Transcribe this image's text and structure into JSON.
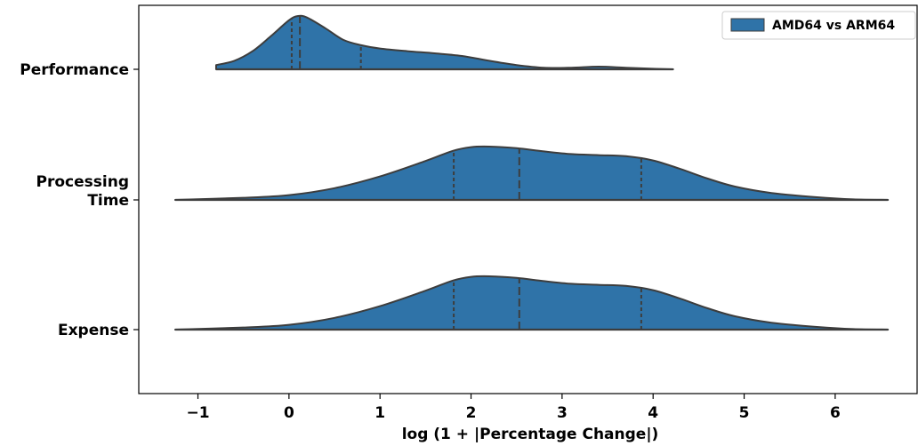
{
  "chart_data": {
    "type": "violin",
    "orientation": "horizontal",
    "split": "half (upper side only)",
    "inner": "quartile",
    "xlabel": "log (1 + |Percentage Change|)",
    "xlim": [
      -1.65,
      6.9
    ],
    "xticks": [
      -1,
      0,
      1,
      2,
      3,
      4,
      5,
      6
    ],
    "xtick_labels": [
      "−1",
      "0",
      "1",
      "2",
      "3",
      "4",
      "5",
      "6"
    ],
    "categories": [
      "Performance",
      "Processing\nTime",
      "Expense"
    ],
    "category_lines": [
      [
        "Performance"
      ],
      [
        "Processing",
        "Time"
      ],
      [
        "Expense"
      ]
    ],
    "legend": {
      "position": "upper right",
      "entries": [
        "AMD64 vs ARM64"
      ]
    },
    "color": "#2f73a8",
    "edge_color": "#3d3d3d",
    "series": [
      {
        "name": "AMD64 vs ARM64",
        "violins": [
          {
            "category": "Performance",
            "range": [
              -0.8,
              4.22
            ],
            "quartiles": [
              0.03,
              0.12,
              0.79
            ],
            "density": [
              [
                -0.8,
                0.08
              ],
              [
                -0.6,
                0.16
              ],
              [
                -0.4,
                0.34
              ],
              [
                -0.2,
                0.62
              ],
              [
                0.0,
                0.92
              ],
              [
                0.1,
                1.0
              ],
              [
                0.2,
                0.97
              ],
              [
                0.4,
                0.77
              ],
              [
                0.6,
                0.55
              ],
              [
                0.8,
                0.45
              ],
              [
                1.0,
                0.39
              ],
              [
                1.3,
                0.34
              ],
              [
                1.6,
                0.3
              ],
              [
                1.9,
                0.25
              ],
              [
                2.2,
                0.16
              ],
              [
                2.5,
                0.08
              ],
              [
                2.8,
                0.03
              ],
              [
                3.1,
                0.03
              ],
              [
                3.4,
                0.05
              ],
              [
                3.7,
                0.03
              ],
              [
                4.0,
                0.01
              ],
              [
                4.22,
                0.0
              ]
            ]
          },
          {
            "category": "Processing\nTime",
            "range": [
              -1.25,
              6.58
            ],
            "quartiles": [
              1.81,
              2.53,
              3.87
            ],
            "density": [
              [
                -1.25,
                0.0
              ],
              [
                -0.5,
                0.04
              ],
              [
                0.0,
                0.09
              ],
              [
                0.5,
                0.22
              ],
              [
                1.0,
                0.44
              ],
              [
                1.5,
                0.73
              ],
              [
                1.8,
                0.92
              ],
              [
                2.0,
                0.99
              ],
              [
                2.2,
                1.0
              ],
              [
                2.5,
                0.97
              ],
              [
                2.8,
                0.91
              ],
              [
                3.1,
                0.86
              ],
              [
                3.4,
                0.84
              ],
              [
                3.7,
                0.82
              ],
              [
                4.0,
                0.74
              ],
              [
                4.3,
                0.58
              ],
              [
                4.6,
                0.4
              ],
              [
                4.9,
                0.25
              ],
              [
                5.3,
                0.13
              ],
              [
                5.8,
                0.05
              ],
              [
                6.2,
                0.01
              ],
              [
                6.58,
                0.0
              ]
            ]
          },
          {
            "category": "Expense",
            "range": [
              -1.25,
              6.58
            ],
            "quartiles": [
              1.81,
              2.53,
              3.87
            ],
            "density": [
              [
                -1.25,
                0.0
              ],
              [
                -0.5,
                0.04
              ],
              [
                0.0,
                0.09
              ],
              [
                0.5,
                0.22
              ],
              [
                1.0,
                0.44
              ],
              [
                1.5,
                0.73
              ],
              [
                1.8,
                0.92
              ],
              [
                2.0,
                0.99
              ],
              [
                2.2,
                1.0
              ],
              [
                2.5,
                0.97
              ],
              [
                2.8,
                0.91
              ],
              [
                3.1,
                0.86
              ],
              [
                3.4,
                0.84
              ],
              [
                3.7,
                0.82
              ],
              [
                4.0,
                0.74
              ],
              [
                4.3,
                0.58
              ],
              [
                4.6,
                0.4
              ],
              [
                4.9,
                0.25
              ],
              [
                5.3,
                0.13
              ],
              [
                5.8,
                0.05
              ],
              [
                6.2,
                0.01
              ],
              [
                6.58,
                0.0
              ]
            ]
          }
        ]
      }
    ]
  }
}
